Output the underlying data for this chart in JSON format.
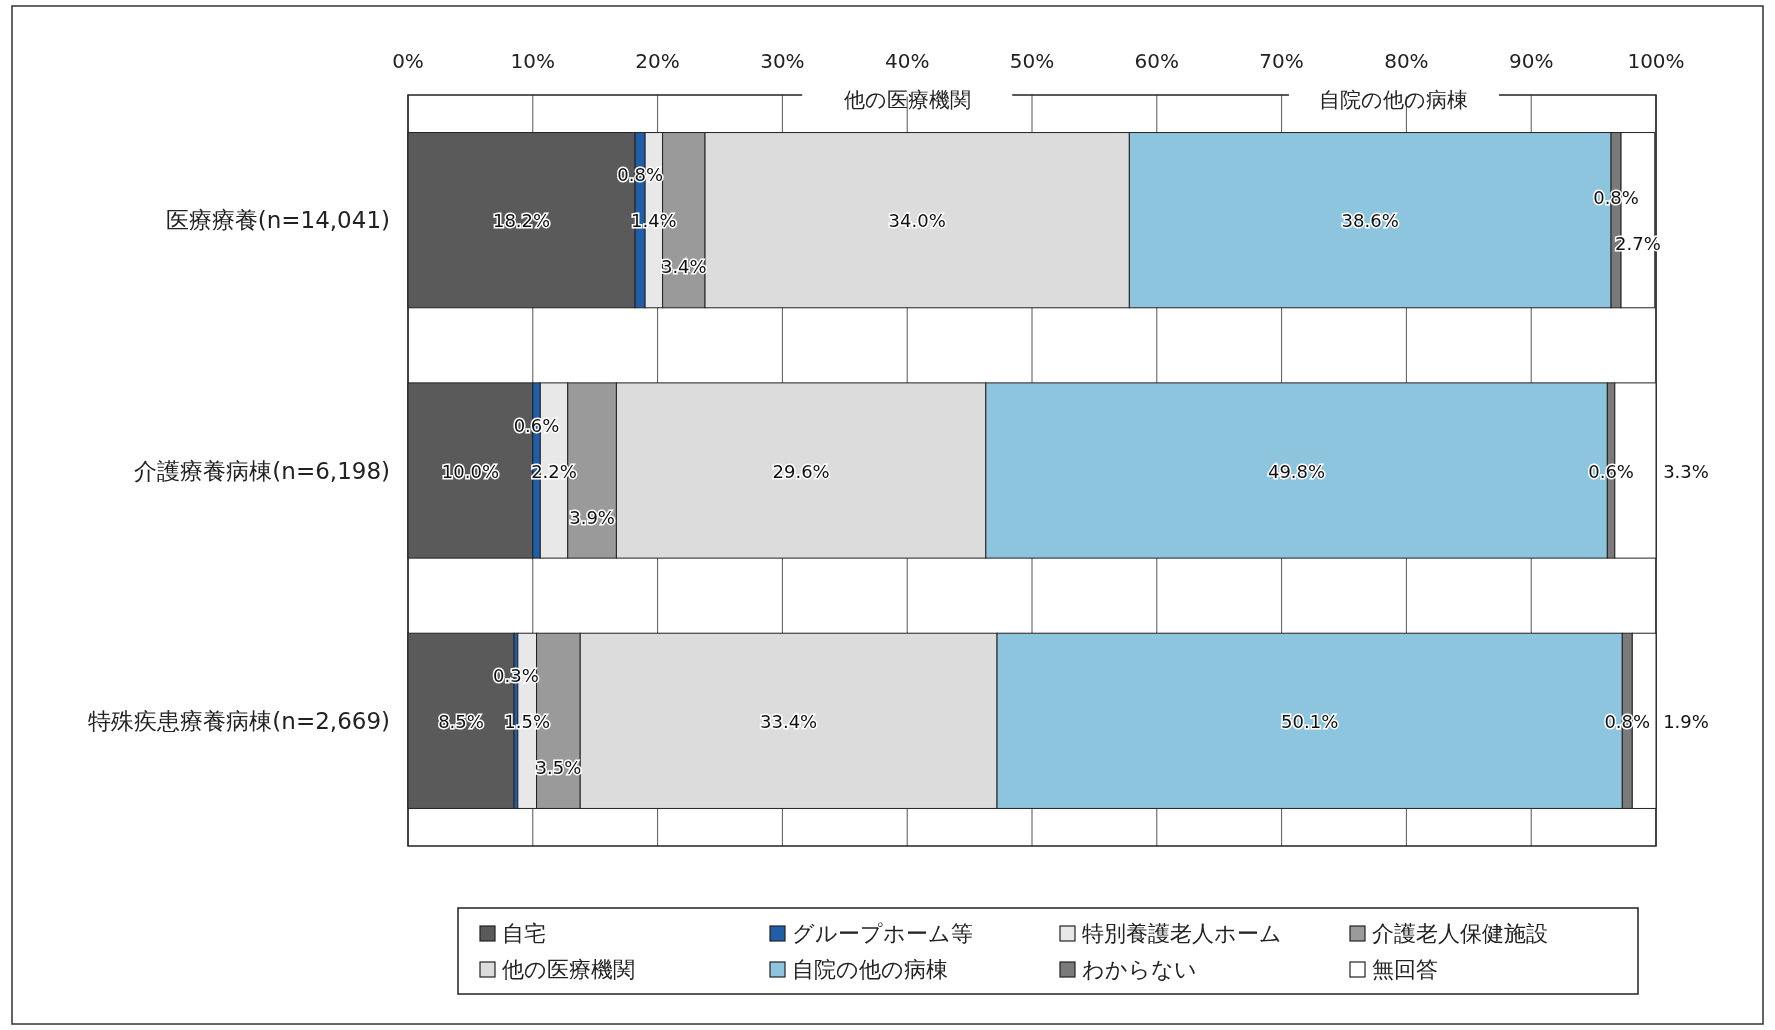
{
  "chart_data": {
    "type": "bar",
    "orientation": "horizontal",
    "stacked": true,
    "grid": "x",
    "legend": "bottom",
    "categories": [
      "医療療養(n=14,041)",
      "介護療養病棟(n=6,198)",
      "特殊疾患療養病棟(n=2,669)"
    ],
    "xlim": [
      0,
      100
    ],
    "xticks": [
      {
        "value": 0,
        "label": "0%"
      },
      {
        "value": 10,
        "label": "10%"
      },
      {
        "value": 20,
        "label": "20%"
      },
      {
        "value": 30,
        "label": "30%"
      },
      {
        "value": 40,
        "label": "40%"
      },
      {
        "value": 50,
        "label": "50%"
      },
      {
        "value": 60,
        "label": "60%"
      },
      {
        "value": 70,
        "label": "70%"
      },
      {
        "value": 80,
        "label": "80%"
      },
      {
        "value": 90,
        "label": "90%"
      },
      {
        "value": 100,
        "label": "100%"
      }
    ],
    "annotations": [
      "他の医療機関",
      "自院の他の病棟"
    ],
    "series": [
      {
        "name": "自宅",
        "color": "#5a5a5a",
        "values": [
          18.2,
          10.0,
          8.5
        ],
        "value_labels": [
          "18.2%",
          "10.0%",
          "8.5%"
        ]
      },
      {
        "name": "グループホーム等",
        "color": "#1f5fa8",
        "values": [
          0.8,
          0.6,
          0.3
        ],
        "value_labels": [
          "0.8%",
          "0.6%",
          "0.3%"
        ]
      },
      {
        "name": "特別養護老人ホーム",
        "color": "#e8e8e8",
        "values": [
          1.4,
          2.2,
          1.5
        ],
        "value_labels": [
          "1.4%",
          "2.2%",
          "1.5%"
        ]
      },
      {
        "name": "介護老人保健施設",
        "color": "#9a9a9a",
        "values": [
          3.4,
          3.9,
          3.5
        ],
        "value_labels": [
          "3.4%",
          "3.9%",
          "3.5%"
        ]
      },
      {
        "name": "他の医療機関",
        "color": "#dcdcdc",
        "values": [
          34.0,
          29.6,
          33.4
        ],
        "value_labels": [
          "34.0%",
          "29.6%",
          "33.4%"
        ]
      },
      {
        "name": "自院の他の病棟",
        "color": "#8ec5de",
        "values": [
          38.6,
          49.8,
          50.1
        ],
        "value_labels": [
          "38.6%",
          "49.8%",
          "50.1%"
        ]
      },
      {
        "name": "わからない",
        "color": "#7a7a7a",
        "values": [
          0.8,
          0.6,
          0.8
        ],
        "value_labels": [
          "0.8%",
          "0.6%",
          "0.8%"
        ]
      },
      {
        "name": "無回答",
        "color": "#ffffff",
        "values": [
          2.7,
          3.3,
          1.9
        ],
        "value_labels": [
          "2.7%",
          "3.3%",
          "1.9%"
        ]
      }
    ]
  }
}
